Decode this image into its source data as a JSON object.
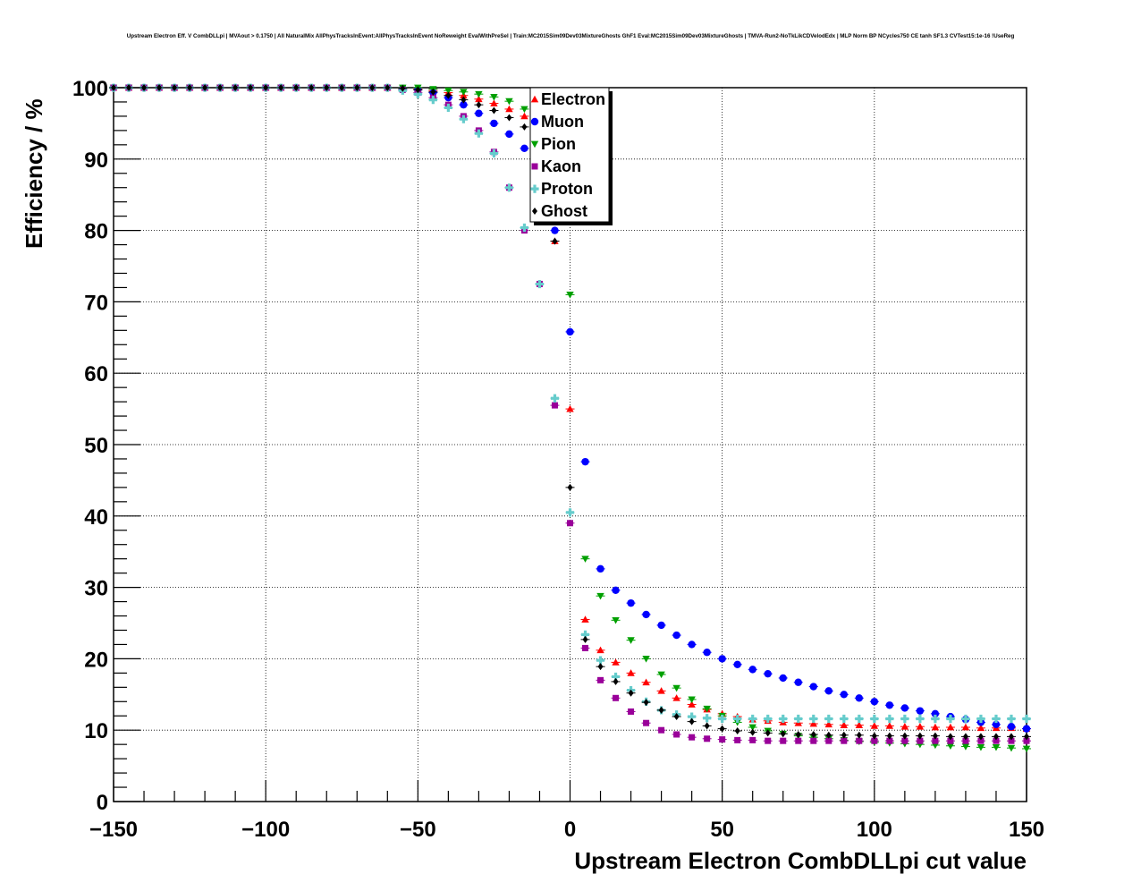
{
  "chart_data": {
    "type": "scatter",
    "title": "Upstream Electron Eff. V CombDLLpi | MVAout > 0.1750 | All NaturalMix AllPhysTracksInEvent:AllPhysTracksInEvent NoReweight EvalWithPreSel | Train:MC2015Sim09Dev03MixtureGhosts GhF1 Eval:MC2015Sim09Dev03MixtureGhosts | TMVA-Run2-NoTkLikCDVelodEdx | MLP Norm BP NCycles750 CE tanh SF1.3 CVTest15:1e-16 !UseReg",
    "xlabel": "Upstream Electron CombDLLpi cut value",
    "ylabel": "Efficiency / %",
    "xlim": [
      -150,
      150
    ],
    "ylim": [
      0,
      100
    ],
    "xticks": [
      -150,
      -100,
      -50,
      0,
      50,
      100,
      150
    ],
    "xtick_labels": [
      "−150",
      "−100",
      "−50",
      "0",
      "50",
      "100",
      "150"
    ],
    "yticks": [
      0,
      10,
      20,
      30,
      40,
      50,
      60,
      70,
      80,
      90,
      100
    ],
    "yticks_labels": [
      "0",
      "10",
      "20",
      "30",
      "40",
      "50",
      "60",
      "70",
      "80",
      "90",
      "100"
    ],
    "grid": true,
    "legend_position": "top-center",
    "x": [
      -150,
      -145,
      -140,
      -135,
      -130,
      -125,
      -120,
      -115,
      -110,
      -105,
      -100,
      -95,
      -90,
      -85,
      -80,
      -75,
      -70,
      -65,
      -60,
      -55,
      -50,
      -45,
      -40,
      -35,
      -30,
      -25,
      -20,
      -15,
      -10,
      -5,
      0,
      5,
      10,
      15,
      20,
      25,
      30,
      35,
      40,
      45,
      50,
      55,
      60,
      65,
      70,
      75,
      80,
      85,
      90,
      95,
      100,
      105,
      110,
      115,
      120,
      125,
      130,
      135,
      140,
      145,
      150
    ],
    "series": [
      {
        "name": "Electron",
        "color": "#ff0000",
        "marker": "triangle-up",
        "values": [
          100,
          100,
          100,
          100,
          100,
          100,
          100,
          100,
          100,
          100,
          100,
          100,
          100,
          100,
          100,
          100,
          100,
          100,
          100,
          99.9,
          99.8,
          99.6,
          99.3,
          98.9,
          98.4,
          97.8,
          97.0,
          96.0,
          91.0,
          78.5,
          55.0,
          25.5,
          21.2,
          19.5,
          18.0,
          16.7,
          15.5,
          14.5,
          13.6,
          12.9,
          12.3,
          11.9,
          11.5,
          11.3,
          11.1,
          11.0,
          10.9,
          10.8,
          10.7,
          10.7,
          10.6,
          10.6,
          10.5,
          10.5,
          10.4,
          10.4,
          10.4,
          10.3,
          10.3,
          10.3,
          10.2
        ]
      },
      {
        "name": "Muon",
        "color": "#0000ff",
        "marker": "circle",
        "values": [
          100,
          100,
          100,
          100,
          100,
          100,
          100,
          100,
          100,
          100,
          100,
          100,
          100,
          100,
          100,
          100,
          100,
          100,
          100,
          99.9,
          99.7,
          99.3,
          98.6,
          97.6,
          96.4,
          95.0,
          93.5,
          91.5,
          88.0,
          80.0,
          65.8,
          47.6,
          32.6,
          29.6,
          27.8,
          26.2,
          24.7,
          23.3,
          22.0,
          20.9,
          20.0,
          19.2,
          18.5,
          17.9,
          17.3,
          16.7,
          16.1,
          15.5,
          15.0,
          14.5,
          14.0,
          13.5,
          13.1,
          12.7,
          12.3,
          11.9,
          11.5,
          11.1,
          10.8,
          10.5,
          10.2
        ]
      },
      {
        "name": "Pion",
        "color": "#00a000",
        "marker": "triangle-down",
        "values": [
          100,
          100,
          100,
          100,
          100,
          100,
          100,
          100,
          100,
          100,
          100,
          100,
          100,
          100,
          100,
          100,
          100,
          100,
          100,
          100,
          100,
          99.8,
          99.6,
          99.4,
          99.1,
          98.7,
          98.1,
          97.0,
          94.0,
          86.0,
          71.0,
          34.0,
          28.8,
          25.4,
          22.6,
          20.0,
          17.8,
          15.9,
          14.3,
          13.0,
          12.0,
          11.1,
          10.4,
          9.9,
          9.5,
          9.2,
          9.0,
          8.8,
          8.6,
          8.4,
          8.3,
          8.2,
          8.1,
          8.0,
          7.9,
          7.8,
          7.7,
          7.6,
          7.6,
          7.5,
          7.4
        ]
      },
      {
        "name": "Kaon",
        "color": "#990099",
        "marker": "square",
        "values": [
          100,
          100,
          100,
          100,
          100,
          100,
          100,
          100,
          100,
          100,
          100,
          100,
          100,
          100,
          100,
          100,
          100,
          100,
          100,
          99.7,
          99.3,
          98.6,
          97.6,
          96.0,
          94.0,
          91.0,
          86.0,
          80.0,
          72.5,
          55.5,
          39.0,
          21.5,
          17.0,
          14.5,
          12.6,
          11.0,
          10.0,
          9.4,
          9.0,
          8.8,
          8.7,
          8.6,
          8.6,
          8.5,
          8.5,
          8.5,
          8.5,
          8.5,
          8.5,
          8.5,
          8.5,
          8.5,
          8.5,
          8.5,
          8.5,
          8.5,
          8.5,
          8.5,
          8.5,
          8.5,
          8.5
        ]
      },
      {
        "name": "Proton",
        "color": "#66cccc",
        "marker": "cross",
        "values": [
          100,
          100,
          100,
          100,
          100,
          100,
          100,
          100,
          100,
          100,
          100,
          100,
          100,
          100,
          100,
          100,
          100,
          100,
          100,
          99.6,
          99.1,
          98.3,
          97.2,
          95.6,
          93.6,
          90.8,
          86.0,
          80.4,
          72.5,
          56.5,
          40.5,
          23.4,
          19.8,
          17.5,
          15.6,
          14.0,
          12.8,
          12.2,
          11.9,
          11.7,
          11.6,
          11.6,
          11.6,
          11.6,
          11.6,
          11.6,
          11.6,
          11.6,
          11.6,
          11.6,
          11.6,
          11.6,
          11.6,
          11.6,
          11.6,
          11.6,
          11.6,
          11.6,
          11.6,
          11.6,
          11.6
        ]
      },
      {
        "name": "Ghost",
        "color": "#000000",
        "marker": "diamond",
        "values": [
          100,
          100,
          100,
          100,
          100,
          100,
          100,
          100,
          100,
          100,
          100,
          100,
          100,
          100,
          100,
          100,
          100,
          100,
          100,
          99.9,
          99.7,
          99.4,
          98.9,
          98.3,
          97.6,
          96.8,
          95.8,
          94.5,
          91.0,
          78.5,
          44.0,
          22.7,
          18.9,
          16.8,
          15.2,
          13.9,
          12.8,
          11.9,
          11.2,
          10.6,
          10.2,
          9.9,
          9.7,
          9.6,
          9.5,
          9.4,
          9.4,
          9.3,
          9.3,
          9.3,
          9.2,
          9.2,
          9.2,
          9.2,
          9.2,
          9.1,
          9.1,
          9.1,
          9.1,
          9.1,
          9.1
        ]
      }
    ]
  }
}
